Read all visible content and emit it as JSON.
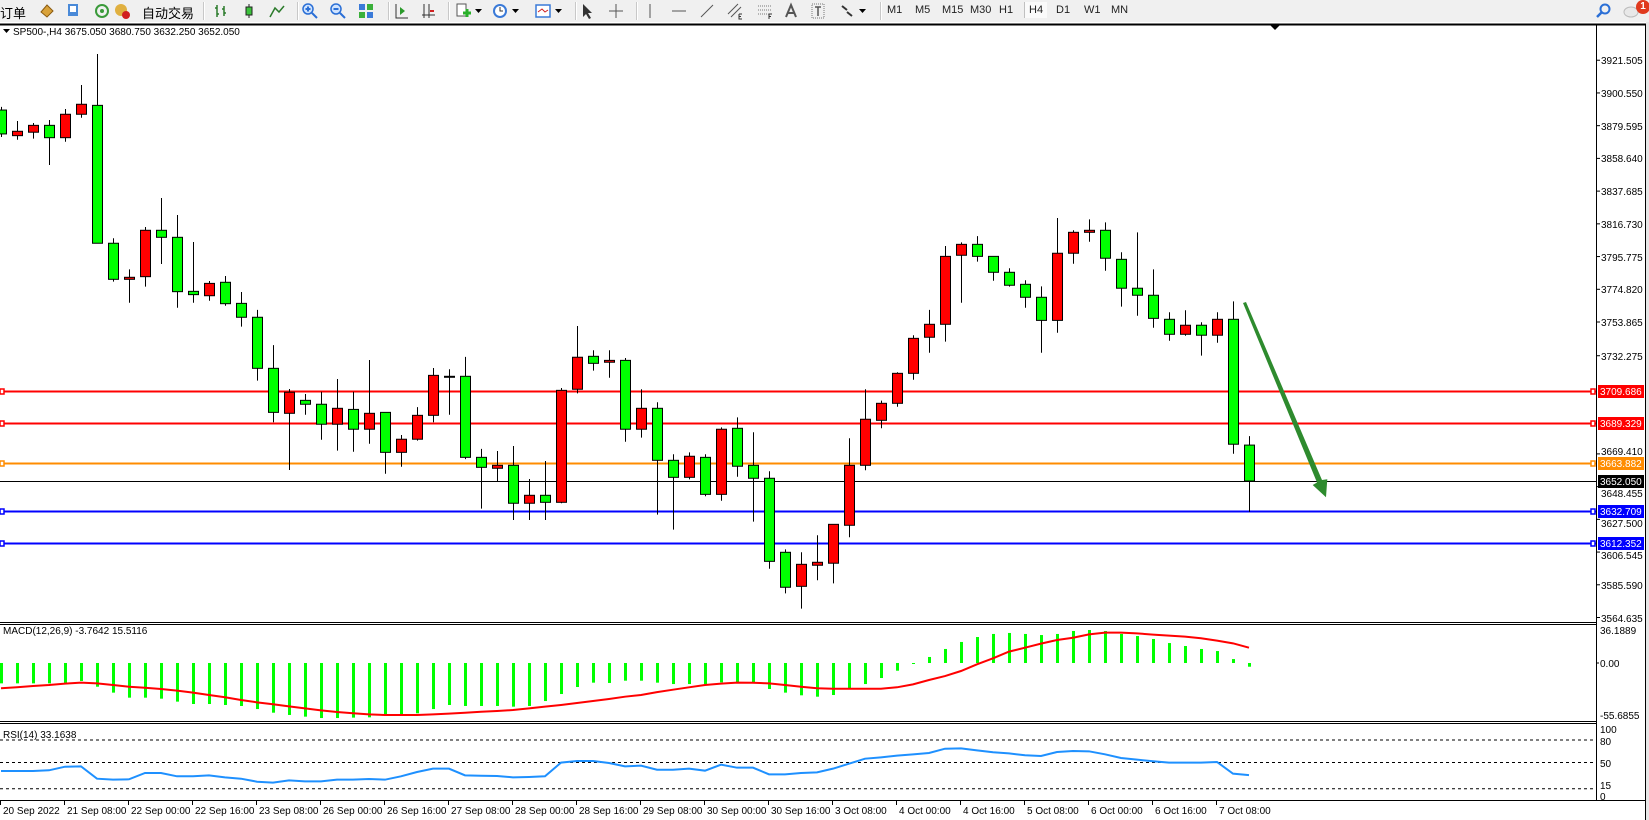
{
  "toolbar": {
    "new_order_label": "新订单",
    "auto_trading_label": "自动交易",
    "icons": [
      "market-watch-icon",
      "data-window-icon",
      "signals-icon",
      "auto-trading-icon",
      "bar-chart-icon",
      "candlestick-icon",
      "line-chart-icon",
      "zoom-in-icon",
      "zoom-out-icon",
      "tile-windows-icon",
      "auto-scroll-icon",
      "chart-shift-icon",
      "indicators-icon",
      "periods-icon",
      "templates-icon",
      "cursor-icon",
      "crosshair-icon",
      "vertical-line-icon",
      "horizontal-line-icon",
      "trendline-icon",
      "equidistant-channel-icon",
      "fibonacci-icon",
      "text-icon",
      "text-label-icon",
      "arrows-icon"
    ],
    "timeframes": [
      "M1",
      "M5",
      "M15",
      "M30",
      "H1",
      "H4",
      "D1",
      "W1",
      "MN"
    ],
    "active_timeframe": "H4",
    "notification_count": "1"
  },
  "chart": {
    "title": "SP500-,H4  3675.050 3680.750 3632.250 3652.050",
    "colors": {
      "bull": "#ff0000",
      "bear": "#00ff00",
      "arrow": "#2e8b2e",
      "rsi": "#1e90ff",
      "macd_hist": "#00ff00",
      "macd_signal": "#ff0000"
    },
    "price_ticks": [
      "3921.505",
      "3900.550",
      "3879.595",
      "3858.640",
      "3837.685",
      "3816.730",
      "3795.775",
      "3774.820",
      "3753.865",
      "3732.275",
      "3669.410",
      "3648.455",
      "3627.500",
      "3606.545",
      "3585.590",
      "3564.635"
    ],
    "levels": [
      {
        "price": 3709.686,
        "label": "3709.686",
        "color": "#ff0000"
      },
      {
        "price": 3689.329,
        "label": "3689.329",
        "color": "#ff0000"
      },
      {
        "price": 3663.882,
        "label": "3663.882",
        "color": "#ff8c00"
      },
      {
        "price": 3652.05,
        "label": "3652.050",
        "color": "#000000"
      },
      {
        "price": 3632.709,
        "label": "3632.709",
        "color": "#0000ff"
      },
      {
        "price": 3612.352,
        "label": "3612.352",
        "color": "#0000ff"
      }
    ],
    "dates": [
      "20 Sep 2022",
      "21 Sep 08:00",
      "22 Sep 00:00",
      "22 Sep 16:00",
      "23 Sep 08:00",
      "26 Sep 00:00",
      "26 Sep 16:00",
      "27 Sep 08:00",
      "28 Sep 00:00",
      "28 Sep 16:00",
      "29 Sep 08:00",
      "30 Sep 00:00",
      "30 Sep 16:00",
      "3 Oct 08:00",
      "4 Oct 00:00",
      "4 Oct 16:00",
      "5 Oct 08:00",
      "6 Oct 00:00",
      "6 Oct 16:00",
      "7 Oct 08:00"
    ]
  },
  "macd": {
    "title": "MACD(12,26,9) -3.7642 15.5116",
    "axis_labels": [
      "36.1889",
      "0.00",
      "-55.6855"
    ]
  },
  "rsi": {
    "title": "RSI(14) 33.1638",
    "axis_labels": [
      "100",
      "80",
      "50",
      "15",
      "0"
    ],
    "levels": [
      80,
      50,
      15
    ]
  },
  "chart_data": {
    "type": "candlestick",
    "symbol": "SP500-",
    "timeframe": "H4",
    "ohlc_order": [
      "open",
      "high",
      "low",
      "close"
    ],
    "ylim": [
      3564.635,
      3921.505
    ],
    "candles": [
      [
        3889.6,
        3891.6,
        3872.3,
        3874.3
      ],
      [
        3873.2,
        3882.6,
        3870.6,
        3876.0
      ],
      [
        3875.4,
        3881.3,
        3871.3,
        3879.8
      ],
      [
        3879.8,
        3883.2,
        3854.4,
        3871.9
      ],
      [
        3871.9,
        3890.3,
        3869.3,
        3886.9
      ],
      [
        3886.9,
        3905.6,
        3884.7,
        3893.3
      ],
      [
        3892.6,
        3925.5,
        3804.3,
        3804.3
      ],
      [
        3804.3,
        3807.5,
        3779.7,
        3781.2
      ],
      [
        3781.2,
        3787.6,
        3766.2,
        3782.5
      ],
      [
        3782.9,
        3814.7,
        3776.5,
        3812.6
      ],
      [
        3812.6,
        3833.3,
        3791.0,
        3808.1
      ],
      [
        3808.1,
        3822.4,
        3763.0,
        3773.3
      ],
      [
        3773.5,
        3805.1,
        3766.2,
        3771.4
      ],
      [
        3770.7,
        3780.1,
        3767.5,
        3778.6
      ],
      [
        3779.3,
        3783.3,
        3764.3,
        3765.6
      ],
      [
        3765.8,
        3773.1,
        3750.9,
        3756.9
      ],
      [
        3756.9,
        3761.6,
        3716.3,
        3724.2
      ],
      [
        3724.2,
        3739.1,
        3689.7,
        3696.0
      ],
      [
        3695.4,
        3711.0,
        3659.1,
        3708.9
      ],
      [
        3703.7,
        3707.8,
        3694.5,
        3701.2
      ],
      [
        3701.2,
        3709.2,
        3678.5,
        3688.4
      ],
      [
        3688.4,
        3717.4,
        3671.5,
        3698.6
      ],
      [
        3697.9,
        3709.2,
        3670.8,
        3685.2
      ],
      [
        3685.2,
        3729.5,
        3675.9,
        3695.4
      ],
      [
        3696.0,
        3696.0,
        3656.7,
        3670.4
      ],
      [
        3670.4,
        3681.5,
        3661.2,
        3678.8
      ],
      [
        3678.8,
        3699.4,
        3677.9,
        3694.1
      ],
      [
        3694.1,
        3724.4,
        3689.7,
        3719.7
      ],
      [
        3719.1,
        3723.6,
        3694.5,
        3719.1
      ],
      [
        3719.1,
        3731.5,
        3666.1,
        3667.2
      ],
      [
        3667.2,
        3672.6,
        3634.4,
        3660.8
      ],
      [
        3660.2,
        3671.3,
        3651.9,
        3662.1
      ],
      [
        3662.1,
        3674.5,
        3627.1,
        3637.8
      ],
      [
        3637.8,
        3653.3,
        3627.1,
        3642.9
      ],
      [
        3642.9,
        3664.9,
        3627.1,
        3638.4
      ],
      [
        3638.4,
        3711.6,
        3637.8,
        3710.1
      ],
      [
        3710.8,
        3751.3,
        3708.2,
        3731.3
      ],
      [
        3731.9,
        3735.8,
        3722.7,
        3727.4
      ],
      [
        3728.1,
        3735.8,
        3718.2,
        3729.3
      ],
      [
        3729.3,
        3730.8,
        3677.2,
        3685.2
      ],
      [
        3685.2,
        3710.8,
        3679.8,
        3698.6
      ],
      [
        3698.6,
        3702.5,
        3630.5,
        3665.3
      ],
      [
        3665.3,
        3669.2,
        3620.9,
        3654.4
      ],
      [
        3654.4,
        3670.4,
        3653.1,
        3667.9
      ],
      [
        3667.2,
        3669.2,
        3642.3,
        3643.5
      ],
      [
        3643.5,
        3686.4,
        3639.4,
        3685.2
      ],
      [
        3685.8,
        3692.8,
        3654.8,
        3661.5
      ],
      [
        3662.1,
        3683.3,
        3626.0,
        3653.8
      ],
      [
        3653.8,
        3658.3,
        3595.9,
        3600.6
      ],
      [
        3606.4,
        3608.3,
        3580.1,
        3584.0
      ],
      [
        3584.6,
        3606.4,
        3570.3,
        3598.7
      ],
      [
        3598.1,
        3617.3,
        3588.5,
        3600.0
      ],
      [
        3599.4,
        3624.3,
        3586.5,
        3624.3
      ],
      [
        3623.7,
        3679.4,
        3616.0,
        3662.1
      ],
      [
        3662.1,
        3710.8,
        3658.9,
        3691.6
      ],
      [
        3690.9,
        3703.5,
        3685.8,
        3701.8
      ],
      [
        3701.8,
        3721.7,
        3699.6,
        3721.0
      ],
      [
        3721.0,
        3745.4,
        3716.9,
        3743.4
      ],
      [
        3744.1,
        3761.6,
        3734.2,
        3752.4
      ],
      [
        3752.4,
        3802.5,
        3741.3,
        3795.9
      ],
      [
        3796.6,
        3804.9,
        3766.2,
        3803.6
      ],
      [
        3803.6,
        3808.9,
        3792.5,
        3795.9
      ],
      [
        3795.9,
        3795.9,
        3780.3,
        3785.7
      ],
      [
        3785.7,
        3788.3,
        3776.5,
        3777.4
      ],
      [
        3778.0,
        3780.6,
        3763.0,
        3769.7
      ],
      [
        3769.7,
        3776.7,
        3734.2,
        3754.9
      ],
      [
        3754.9,
        3820.5,
        3747.0,
        3797.9
      ],
      [
        3797.9,
        3812.6,
        3791.2,
        3811.3
      ],
      [
        3811.3,
        3819.6,
        3805.3,
        3812.6
      ],
      [
        3812.6,
        3817.7,
        3786.7,
        3794.7
      ],
      [
        3794.0,
        3798.5,
        3763.7,
        3775.5
      ],
      [
        3775.5,
        3811.3,
        3757.9,
        3771.0
      ],
      [
        3771.0,
        3787.6,
        3750.2,
        3756.2
      ],
      [
        3755.6,
        3760.1,
        3741.9,
        3746.0
      ],
      [
        3746.0,
        3761.4,
        3745.1,
        3751.8
      ],
      [
        3751.8,
        3753.7,
        3732.3,
        3745.4
      ],
      [
        3745.4,
        3760.1,
        3740.6,
        3755.6
      ],
      [
        3755.6,
        3767.1,
        3669.5,
        3675.6
      ],
      [
        3675.05,
        3680.75,
        3632.25,
        3652.05
      ]
    ],
    "macd_hist": [
      -20.6,
      -20.6,
      -20.6,
      -20.6,
      -20.6,
      -18.2,
      -24.0,
      -30.0,
      -35.1,
      -35.1,
      -36.1,
      -39.1,
      -41.5,
      -41.5,
      -42.5,
      -43.5,
      -46.6,
      -50.3,
      -52.6,
      -54.3,
      -55.7,
      -55.7,
      -55.3,
      -55.0,
      -53.0,
      -52.0,
      -50.9,
      -46.6,
      -42.5,
      -43.5,
      -43.5,
      -43.5,
      -44.2,
      -43.5,
      -38.5,
      -31.4,
      -24.3,
      -19.9,
      -20.2,
      -17.9,
      -17.9,
      -19.9,
      -21.3,
      -21.3,
      -21.3,
      -19.6,
      -19.6,
      -19.6,
      -26.3,
      -30.0,
      -32.7,
      -34.1,
      -32.4,
      -25.6,
      -21.3,
      -15.2,
      -7.8,
      -0.8,
      6.1,
      14.2,
      21.3,
      26.3,
      29.4,
      30.4,
      29.4,
      28.3,
      29.4,
      32.4,
      33.4,
      32.4,
      29.4,
      27.3,
      24.3,
      20.2,
      17.2,
      14.2,
      12.1,
      4.0,
      -3.7642
    ],
    "macd_signal": [
      -25.6,
      -24.6,
      -23.3,
      -22.3,
      -20.9,
      -19.9,
      -20.6,
      -22.3,
      -24.0,
      -25.0,
      -26.3,
      -28.0,
      -30.0,
      -32.4,
      -34.7,
      -37.4,
      -39.8,
      -41.8,
      -43.9,
      -45.9,
      -47.9,
      -49.6,
      -50.9,
      -52.0,
      -52.6,
      -52.6,
      -52.6,
      -52.0,
      -51.3,
      -50.3,
      -49.3,
      -48.6,
      -47.6,
      -45.9,
      -44.2,
      -42.5,
      -40.5,
      -38.5,
      -36.4,
      -34.1,
      -32.4,
      -29.5,
      -27.0,
      -24.6,
      -22.3,
      -20.9,
      -19.9,
      -20.0,
      -20.6,
      -22.3,
      -24.0,
      -25.6,
      -26.0,
      -26.0,
      -26.0,
      -26.0,
      -24.6,
      -21.6,
      -17.2,
      -13.2,
      -8.1,
      -1.3,
      4.7,
      11.5,
      15.5,
      19.6,
      23.3,
      25.6,
      29.0,
      30.7,
      30.7,
      30.0,
      28.7,
      27.7,
      26.7,
      25.0,
      22.6,
      19.9,
      15.5116
    ],
    "macd_ylim": [
      -55.6855,
      36.1889
    ],
    "rsi": [
      38.7,
      38.7,
      38.7,
      39.6,
      44.4,
      44.9,
      28.4,
      27.1,
      27.6,
      36.0,
      36.0,
      31.6,
      31.6,
      32.9,
      30.2,
      28.4,
      24.4,
      23.1,
      26.2,
      24.9,
      24.9,
      27.1,
      27.1,
      28.0,
      27.1,
      31.6,
      37.3,
      41.8,
      41.8,
      32.9,
      32.4,
      32.0,
      30.2,
      30.7,
      31.6,
      49.8,
      52.0,
      52.0,
      49.3,
      44.9,
      45.8,
      40.4,
      40.4,
      41.8,
      39.1,
      47.1,
      43.1,
      43.1,
      34.2,
      34.2,
      36.0,
      36.9,
      41.8,
      48.4,
      55.1,
      56.9,
      59.1,
      60.9,
      62.7,
      68.4,
      68.9,
      66.2,
      63.6,
      62.2,
      59.6,
      58.7,
      64.0,
      65.3,
      64.9,
      60.9,
      56.0,
      53.8,
      51.6,
      49.8,
      49.8,
      49.8,
      50.7,
      35.1,
      33.1638
    ],
    "rsi_ylim": [
      0,
      100
    ]
  }
}
